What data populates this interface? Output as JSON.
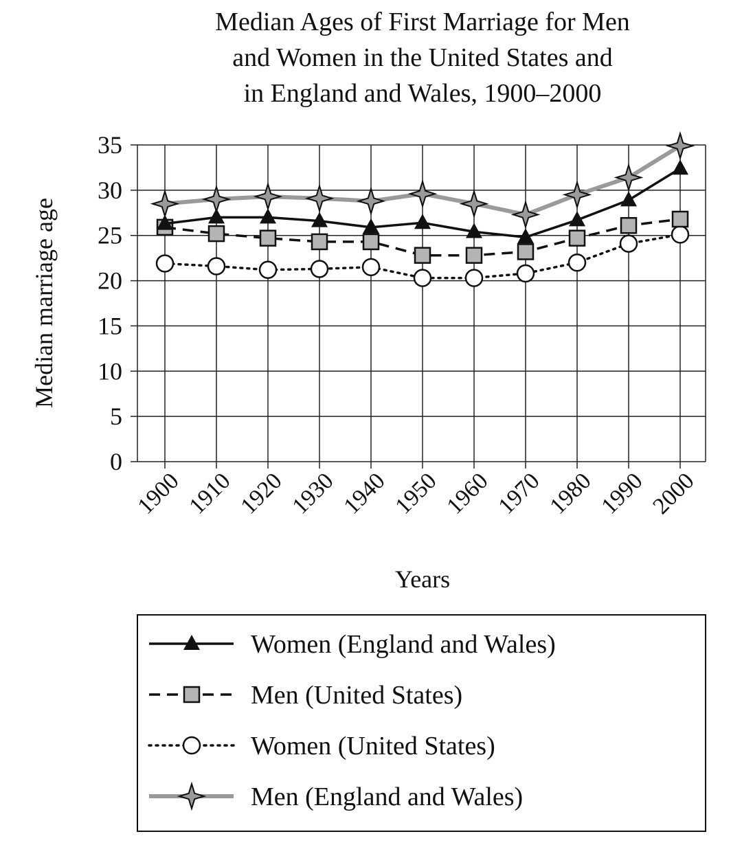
{
  "chart_data": {
    "type": "line",
    "title": [
      "Median Ages of First Marriage for Men",
      "and Women in the United States and",
      "in England and Wales, 1900–2000"
    ],
    "xlabel": "Years",
    "ylabel": "Median marriage age",
    "ylim": [
      0,
      35
    ],
    "yticks": [
      "0",
      "5",
      "10",
      "15",
      "20",
      "25",
      "30",
      "35"
    ],
    "x": [
      "1900",
      "1910",
      "1920",
      "1930",
      "1940",
      "1950",
      "1960",
      "1970",
      "1980",
      "1990",
      "2000"
    ],
    "grid": true,
    "legend_position": "bottom",
    "series": [
      {
        "name": "Women (England and Wales)",
        "marker": "triangle",
        "line": "solid",
        "color": "#111111",
        "values": [
          26.3,
          27.0,
          27.0,
          26.6,
          25.9,
          26.4,
          25.4,
          24.8,
          26.7,
          28.9,
          32.4
        ]
      },
      {
        "name": "Men (United States)",
        "marker": "square",
        "line": "dashed",
        "color": "#111111",
        "values": [
          25.9,
          25.2,
          24.7,
          24.3,
          24.3,
          22.8,
          22.8,
          23.2,
          24.7,
          26.1,
          26.8
        ]
      },
      {
        "name": "Women (United States)",
        "marker": "circle",
        "line": "dotted",
        "color": "#111111",
        "values": [
          21.9,
          21.6,
          21.2,
          21.3,
          21.5,
          20.3,
          20.3,
          20.8,
          22.0,
          24.1,
          25.1
        ]
      },
      {
        "name": "Men (England and Wales)",
        "marker": "star",
        "line": "solid",
        "color": "#9a9a9a",
        "values": [
          28.5,
          29.0,
          29.3,
          29.1,
          28.8,
          29.6,
          28.5,
          27.3,
          29.5,
          31.4,
          34.9
        ]
      }
    ]
  }
}
